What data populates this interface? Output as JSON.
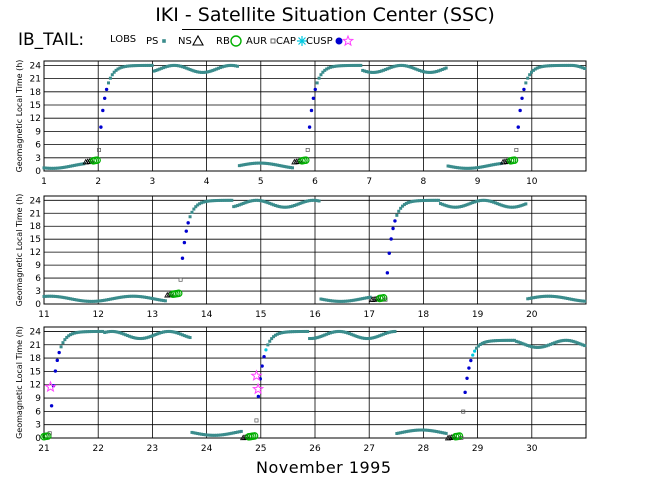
{
  "title": "IKI - Satellite Situation Center (SSC)",
  "legend_prefix": "IB_TAIL:",
  "legend": [
    {
      "label": "LOBS",
      "marker": "none",
      "color": "#000000"
    },
    {
      "label": "PS",
      "marker": "small-square",
      "color": "#3a8c8c"
    },
    {
      "label": "NS",
      "marker": "triangle",
      "color": "#000000"
    },
    {
      "label": "RB",
      "marker": "circle",
      "color": "#00b000"
    },
    {
      "label": "AUR",
      "marker": "open-square",
      "color": "#555555"
    },
    {
      "label": "CAP",
      "marker": "star",
      "color": "#00c8e0"
    },
    {
      "label": "CUSP",
      "marker": "dot",
      "color": "#0000d0"
    },
    {
      "label": "",
      "marker": "pentagram",
      "color": "#ff40ff"
    }
  ],
  "month_label": "November    1995",
  "colors": {
    "PS": "#3a8c8c",
    "RB": "#00b000",
    "AUR": "#555555",
    "CAP": "#00c8e0",
    "CUSP": "#0000d0",
    "NS": "#000000",
    "MAG": "#ff40ff"
  },
  "chart_data": [
    {
      "type": "scatter",
      "ylabel": "Geomagnetic Local Time (h)",
      "xlabel": "",
      "xlim": [
        1,
        11
      ],
      "ylim": [
        0,
        25
      ],
      "xticks": [
        1,
        2,
        3,
        4,
        5,
        6,
        7,
        8,
        9,
        10
      ],
      "yticks": [
        0,
        3,
        6,
        9,
        12,
        15,
        18,
        21,
        24
      ],
      "grid": true,
      "perigee_passes": [
        {
          "x": 2.0,
          "y_start": 2,
          "y_end": 24
        },
        {
          "x": 5.85,
          "y_start": 2,
          "y_end": 24
        },
        {
          "x": 9.7,
          "y_start": 2,
          "y_end": 24
        }
      ]
    },
    {
      "type": "scatter",
      "ylabel": "Geomagnetic Local Time (h)",
      "xlabel": "",
      "xlim": [
        11,
        21
      ],
      "ylim": [
        0,
        25
      ],
      "xticks": [
        11,
        12,
        13,
        14,
        15,
        16,
        17,
        18,
        19,
        20
      ],
      "yticks": [
        0,
        3,
        6,
        9,
        12,
        15,
        18,
        21,
        24
      ],
      "grid": true,
      "perigee_passes": [
        {
          "x": 13.5,
          "y_start": 2,
          "y_end": 24
        },
        {
          "x": 17.3,
          "y_start": 1,
          "y_end": 24
        }
      ]
    },
    {
      "type": "scatter",
      "ylabel": "Geomagnetic Local Time (h)",
      "xlabel": "",
      "xlim": [
        21,
        31
      ],
      "ylim": [
        0,
        25
      ],
      "xticks": [
        21,
        22,
        23,
        24,
        25,
        26,
        27,
        28,
        29,
        30
      ],
      "yticks": [
        0,
        3,
        6,
        9,
        12,
        15,
        18,
        21,
        24
      ],
      "grid": true,
      "perigee_passes": [
        {
          "x": 21.1,
          "y_start": 0,
          "y_end": 24
        },
        {
          "x": 24.9,
          "y_start": 0,
          "y_end": 24
        },
        {
          "x": 28.7,
          "y_start": 0,
          "y_end": 22
        }
      ]
    }
  ]
}
